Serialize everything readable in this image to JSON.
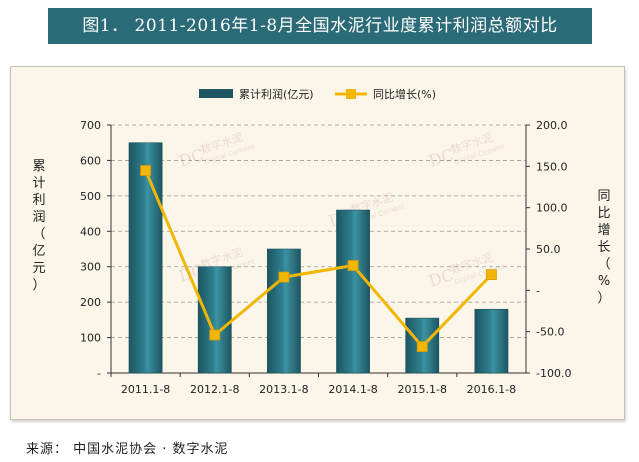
{
  "title": "图1． 2011-2016年1-8月全国水泥行业度累计利润总额对比",
  "source": "来源： 中国水泥协会 · 数字水泥",
  "watermark": [
    "DC",
    "数字水泥",
    "Digital Cement"
  ],
  "colors": {
    "title_bg": "#2b6b78",
    "panel_bg": "#fbf6e9",
    "bar": "#2e7f8f",
    "bar_dark": "#1d5560",
    "line": "#f2b705"
  },
  "chart_data": {
    "type": "bar",
    "categories": [
      "2011.1-8",
      "2012.1-8",
      "2013.1-8",
      "2014.1-8",
      "2015.1-8",
      "2016.1-8"
    ],
    "series": [
      {
        "name": "累计利润(亿元)",
        "type": "bar",
        "axis": "left",
        "values": [
          650,
          300,
          350,
          460,
          155,
          180
        ]
      },
      {
        "name": "同比增长(%)",
        "type": "line",
        "axis": "right",
        "values": [
          145,
          -54,
          16,
          30,
          -68,
          19
        ]
      }
    ],
    "ylabel": "累计利润（亿元）",
    "y2label": "同比增长（%）",
    "ylim": [
      0,
      700
    ],
    "y2lim": [
      -100,
      200
    ],
    "yticks": [
      "-",
      "100",
      "200",
      "300",
      "400",
      "500",
      "600",
      "700"
    ],
    "y2ticks": [
      "-100.0",
      "-50.0",
      "-",
      "50.0",
      "100.0",
      "150.0",
      "200.0"
    ],
    "grid": true,
    "legend": "top"
  }
}
